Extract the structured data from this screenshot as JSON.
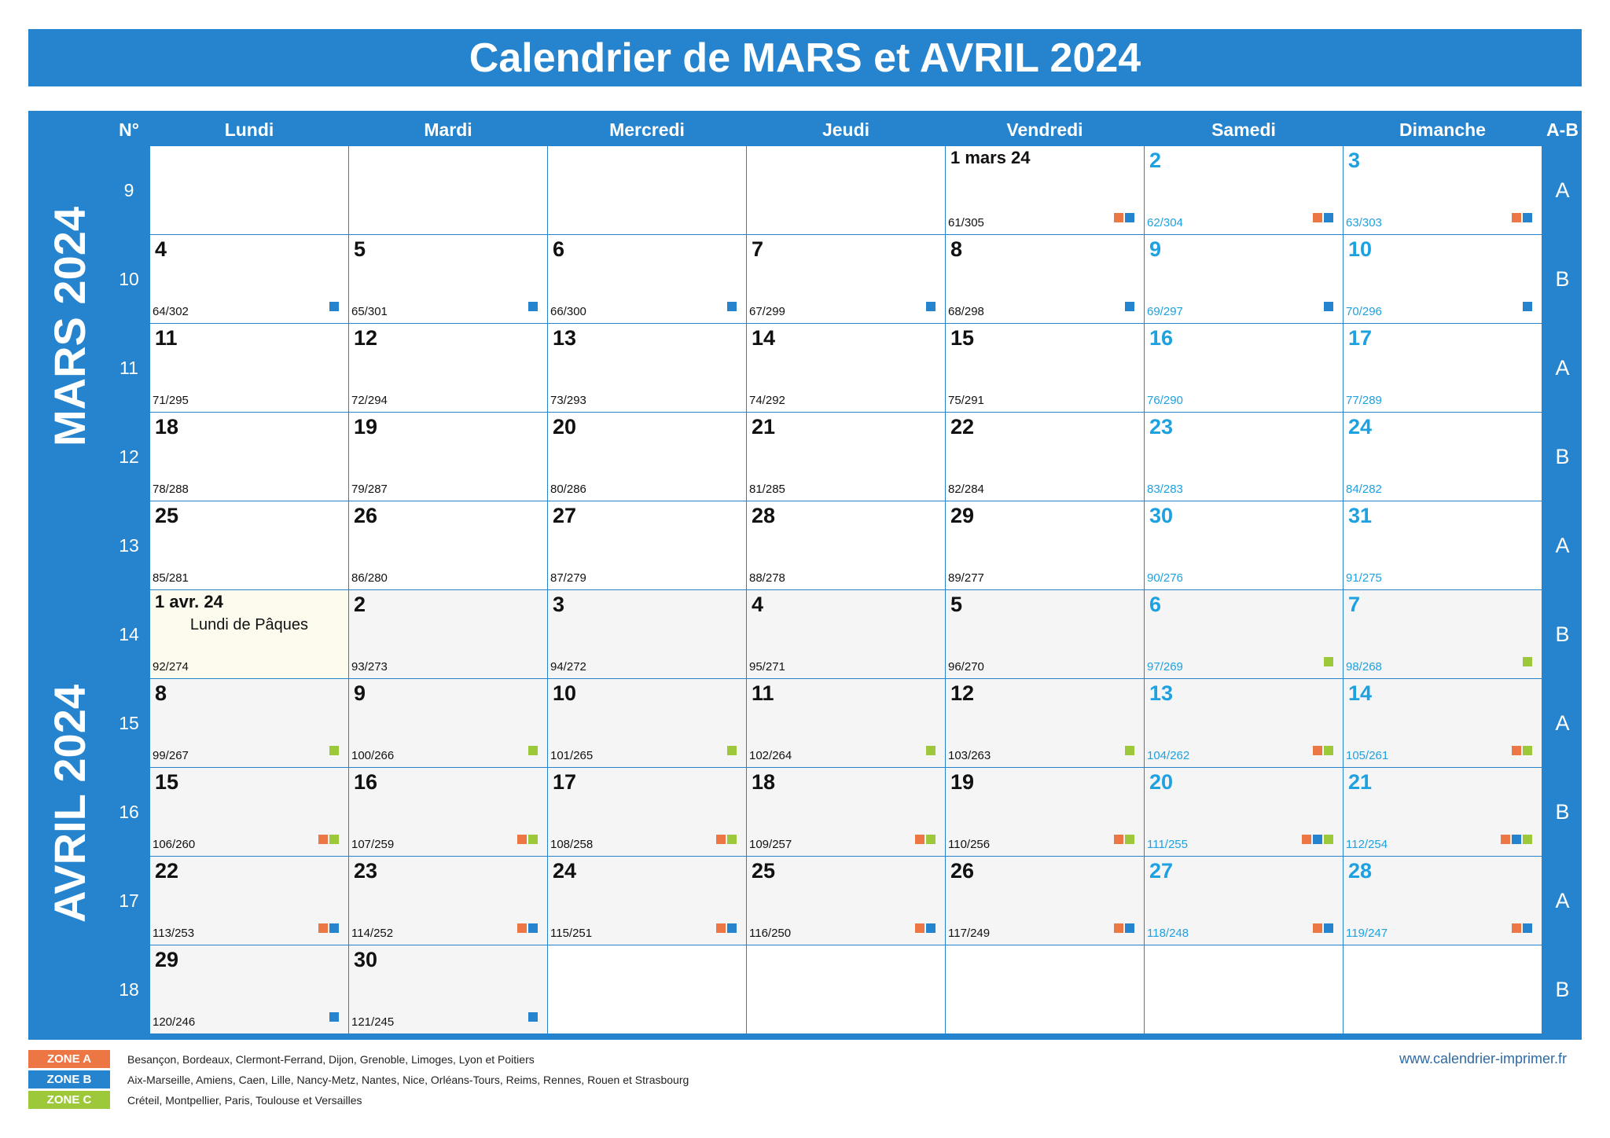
{
  "title": "Calendrier de MARS et AVRIL 2024",
  "colors": {
    "header_blue": "#2584cd",
    "weekend_text": "#1da1e0",
    "zone_a": "#ed7744",
    "zone_b": "#2584cd",
    "zone_c": "#9cc83a"
  },
  "headers": {
    "week_number": "N°",
    "days": [
      "Lundi",
      "Mardi",
      "Mercredi",
      "Jeudi",
      "Vendredi",
      "Samedi",
      "Dimanche"
    ],
    "week_type": "A-B"
  },
  "months": [
    "MARS 2024",
    "AVRIL 2024"
  ],
  "weeks": [
    {
      "num": "9",
      "ab": "A",
      "days": [
        null,
        null,
        null,
        null,
        {
          "label": "1 mars 24",
          "doy": "61/305",
          "zones": [
            "A",
            "B"
          ],
          "month": 3
        },
        {
          "label": "2",
          "doy": "62/304",
          "zones": [
            "A",
            "B"
          ],
          "month": 3
        },
        {
          "label": "3",
          "doy": "63/303",
          "zones": [
            "A",
            "B"
          ],
          "month": 3
        }
      ]
    },
    {
      "num": "10",
      "ab": "B",
      "days": [
        {
          "label": "4",
          "doy": "64/302",
          "zones": [
            "B"
          ],
          "month": 3
        },
        {
          "label": "5",
          "doy": "65/301",
          "zones": [
            "B"
          ],
          "month": 3
        },
        {
          "label": "6",
          "doy": "66/300",
          "zones": [
            "B"
          ],
          "month": 3
        },
        {
          "label": "7",
          "doy": "67/299",
          "zones": [
            "B"
          ],
          "month": 3
        },
        {
          "label": "8",
          "doy": "68/298",
          "zones": [
            "B"
          ],
          "month": 3
        },
        {
          "label": "9",
          "doy": "69/297",
          "zones": [
            "B"
          ],
          "month": 3
        },
        {
          "label": "10",
          "doy": "70/296",
          "zones": [
            "B"
          ],
          "month": 3
        }
      ]
    },
    {
      "num": "11",
      "ab": "A",
      "days": [
        {
          "label": "11",
          "doy": "71/295",
          "zones": [],
          "month": 3
        },
        {
          "label": "12",
          "doy": "72/294",
          "zones": [],
          "month": 3
        },
        {
          "label": "13",
          "doy": "73/293",
          "zones": [],
          "month": 3
        },
        {
          "label": "14",
          "doy": "74/292",
          "zones": [],
          "month": 3
        },
        {
          "label": "15",
          "doy": "75/291",
          "zones": [],
          "month": 3
        },
        {
          "label": "16",
          "doy": "76/290",
          "zones": [],
          "month": 3
        },
        {
          "label": "17",
          "doy": "77/289",
          "zones": [],
          "month": 3
        }
      ]
    },
    {
      "num": "12",
      "ab": "B",
      "days": [
        {
          "label": "18",
          "doy": "78/288",
          "zones": [],
          "month": 3
        },
        {
          "label": "19",
          "doy": "79/287",
          "zones": [],
          "month": 3
        },
        {
          "label": "20",
          "doy": "80/286",
          "zones": [],
          "month": 3
        },
        {
          "label": "21",
          "doy": "81/285",
          "zones": [],
          "month": 3
        },
        {
          "label": "22",
          "doy": "82/284",
          "zones": [],
          "month": 3
        },
        {
          "label": "23",
          "doy": "83/283",
          "zones": [],
          "month": 3
        },
        {
          "label": "24",
          "doy": "84/282",
          "zones": [],
          "month": 3
        }
      ]
    },
    {
      "num": "13",
      "ab": "A",
      "days": [
        {
          "label": "25",
          "doy": "85/281",
          "zones": [],
          "month": 3
        },
        {
          "label": "26",
          "doy": "86/280",
          "zones": [],
          "month": 3
        },
        {
          "label": "27",
          "doy": "87/279",
          "zones": [],
          "month": 3
        },
        {
          "label": "28",
          "doy": "88/278",
          "zones": [],
          "month": 3
        },
        {
          "label": "29",
          "doy": "89/277",
          "zones": [],
          "month": 3
        },
        {
          "label": "30",
          "doy": "90/276",
          "zones": [],
          "month": 3
        },
        {
          "label": "31",
          "doy": "91/275",
          "zones": [],
          "month": 3
        }
      ]
    },
    {
      "num": "14",
      "ab": "B",
      "days": [
        {
          "label": "1 avr. 24",
          "doy": "92/274",
          "zones": [],
          "month": 4,
          "holiday": "Lundi de Pâques"
        },
        {
          "label": "2",
          "doy": "93/273",
          "zones": [],
          "month": 4
        },
        {
          "label": "3",
          "doy": "94/272",
          "zones": [],
          "month": 4
        },
        {
          "label": "4",
          "doy": "95/271",
          "zones": [],
          "month": 4
        },
        {
          "label": "5",
          "doy": "96/270",
          "zones": [],
          "month": 4
        },
        {
          "label": "6",
          "doy": "97/269",
          "zones": [
            "C"
          ],
          "month": 4
        },
        {
          "label": "7",
          "doy": "98/268",
          "zones": [
            "C"
          ],
          "month": 4
        }
      ]
    },
    {
      "num": "15",
      "ab": "A",
      "days": [
        {
          "label": "8",
          "doy": "99/267",
          "zones": [
            "C"
          ],
          "month": 4
        },
        {
          "label": "9",
          "doy": "100/266",
          "zones": [
            "C"
          ],
          "month": 4
        },
        {
          "label": "10",
          "doy": "101/265",
          "zones": [
            "C"
          ],
          "month": 4
        },
        {
          "label": "11",
          "doy": "102/264",
          "zones": [
            "C"
          ],
          "month": 4
        },
        {
          "label": "12",
          "doy": "103/263",
          "zones": [
            "C"
          ],
          "month": 4
        },
        {
          "label": "13",
          "doy": "104/262",
          "zones": [
            "A",
            "C"
          ],
          "month": 4
        },
        {
          "label": "14",
          "doy": "105/261",
          "zones": [
            "A",
            "C"
          ],
          "month": 4
        }
      ]
    },
    {
      "num": "16",
      "ab": "B",
      "days": [
        {
          "label": "15",
          "doy": "106/260",
          "zones": [
            "A",
            "C"
          ],
          "month": 4
        },
        {
          "label": "16",
          "doy": "107/259",
          "zones": [
            "A",
            "C"
          ],
          "month": 4
        },
        {
          "label": "17",
          "doy": "108/258",
          "zones": [
            "A",
            "C"
          ],
          "month": 4
        },
        {
          "label": "18",
          "doy": "109/257",
          "zones": [
            "A",
            "C"
          ],
          "month": 4
        },
        {
          "label": "19",
          "doy": "110/256",
          "zones": [
            "A",
            "C"
          ],
          "month": 4
        },
        {
          "label": "20",
          "doy": "111/255",
          "zones": [
            "A",
            "B",
            "C"
          ],
          "month": 4
        },
        {
          "label": "21",
          "doy": "112/254",
          "zones": [
            "A",
            "B",
            "C"
          ],
          "month": 4
        }
      ]
    },
    {
      "num": "17",
      "ab": "A",
      "days": [
        {
          "label": "22",
          "doy": "113/253",
          "zones": [
            "A",
            "B"
          ],
          "month": 4
        },
        {
          "label": "23",
          "doy": "114/252",
          "zones": [
            "A",
            "B"
          ],
          "month": 4
        },
        {
          "label": "24",
          "doy": "115/251",
          "zones": [
            "A",
            "B"
          ],
          "month": 4
        },
        {
          "label": "25",
          "doy": "116/250",
          "zones": [
            "A",
            "B"
          ],
          "month": 4
        },
        {
          "label": "26",
          "doy": "117/249",
          "zones": [
            "A",
            "B"
          ],
          "month": 4
        },
        {
          "label": "27",
          "doy": "118/248",
          "zones": [
            "A",
            "B"
          ],
          "month": 4
        },
        {
          "label": "28",
          "doy": "119/247",
          "zones": [
            "A",
            "B"
          ],
          "month": 4
        }
      ]
    },
    {
      "num": "18",
      "ab": "B",
      "days": [
        {
          "label": "29",
          "doy": "120/246",
          "zones": [
            "B"
          ],
          "month": 4
        },
        {
          "label": "30",
          "doy": "121/245",
          "zones": [
            "B"
          ],
          "month": 4
        },
        null,
        null,
        null,
        null,
        null
      ]
    }
  ],
  "legend": [
    {
      "zone": "ZONE A",
      "cities": "Besançon, Bordeaux, Clermont-Ferrand, Dijon, Grenoble, Limoges, Lyon et Poitiers"
    },
    {
      "zone": "ZONE B",
      "cities": "Aix-Marseille, Amiens, Caen, Lille, Nancy-Metz, Nantes, Nice, Orléans-Tours, Reims, Rennes, Rouen et Strasbourg"
    },
    {
      "zone": "ZONE C",
      "cities": "Créteil, Montpellier, Paris, Toulouse et Versailles"
    }
  ],
  "website": "www.calendrier-imprimer.fr"
}
